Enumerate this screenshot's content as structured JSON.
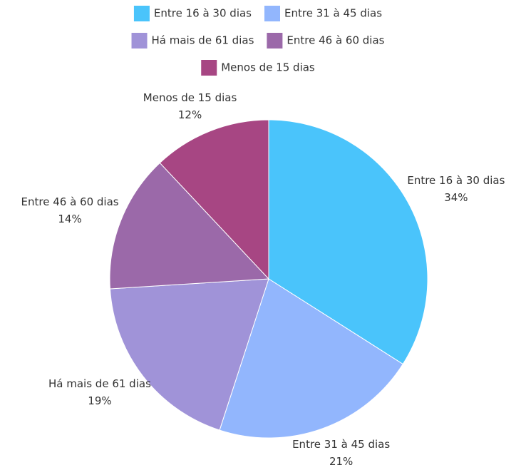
{
  "chart_data": {
    "type": "pie",
    "categories": [
      "Entre 16 à 30 dias",
      "Entre 31 à 45 dias",
      "Há mais de 61 dias",
      "Entre 46 à 60 dias",
      "Menos de 15 dias"
    ],
    "values": [
      34,
      21,
      19,
      14,
      12
    ],
    "value_labels": [
      "34%",
      "21%",
      "19%",
      "14%",
      "12%"
    ],
    "colors": [
      "#4ac4fb",
      "#92b6fd",
      "#a093d8",
      "#9b69a9",
      "#a74683"
    ],
    "legend": "top"
  }
}
